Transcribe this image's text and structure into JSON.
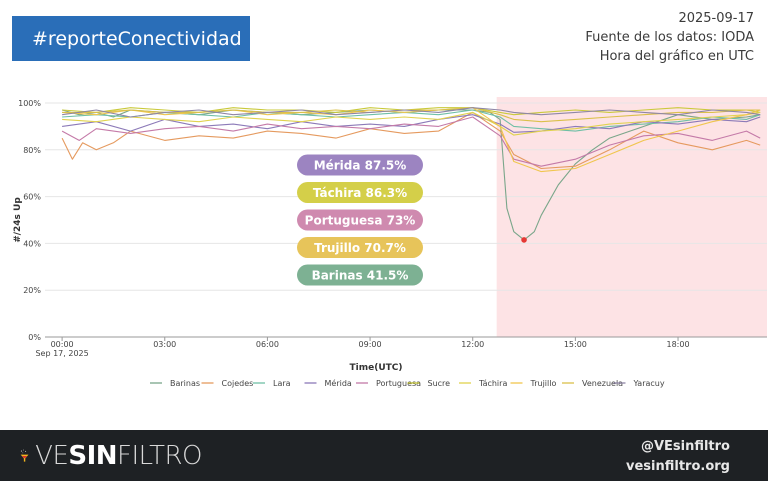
{
  "header": {
    "hashtag": "#reporteConectividad",
    "date": "2025-09-17",
    "source": "Fuente de los datos: IODA",
    "timezone_note": "Hora del gráfico en UTC"
  },
  "chart_data": {
    "type": "line",
    "xlabel": "Time(UTC)",
    "ylabel": "#/24s Up",
    "ylim": [
      0,
      100
    ],
    "y_ticks": [
      "0%",
      "20%",
      "40%",
      "60%",
      "80%",
      "100%"
    ],
    "x_ticks": [
      "00:00",
      "03:00",
      "06:00",
      "09:00",
      "12:00",
      "15:00",
      "18:00"
    ],
    "x_tick_hours": [
      0,
      3,
      6,
      9,
      12,
      15,
      18
    ],
    "x_start_label": "Sep 17, 2025",
    "xlim_hours": [
      -0.5,
      20.6
    ],
    "highlight_region_hours": [
      12.7,
      20.6
    ],
    "highlight_color": "#fde3e5",
    "marker": {
      "hour": 13.5,
      "value": 41.5,
      "color": "#e53935"
    },
    "labels": [
      {
        "text": "Mérida 87.5%",
        "color": "#9c84c1"
      },
      {
        "text": "Táchira 86.3%",
        "color": "#d4cf49"
      },
      {
        "text": "Portuguesa 73%",
        "color": "#cf8aaf"
      },
      {
        "text": "Trujillo 70.7%",
        "color": "#e7c45a"
      },
      {
        "text": "Barinas 41.5%",
        "color": "#7db193"
      }
    ],
    "series": [
      {
        "name": "Barinas",
        "color": "#7aa68a",
        "x": [
          0,
          0.5,
          1,
          1.5,
          2,
          3,
          4,
          5,
          6,
          7,
          8,
          9,
          10,
          11,
          12,
          12.5,
          12.8,
          13,
          13.2,
          13.5,
          13.8,
          14,
          14.5,
          15,
          15.5,
          16,
          17,
          18,
          19,
          20,
          20.4
        ],
        "values": [
          97,
          95,
          96,
          94,
          97,
          96,
          95,
          97,
          96,
          95,
          96,
          97,
          96,
          97,
          97,
          96,
          93,
          55,
          45,
          41.5,
          45,
          52,
          65,
          74,
          80,
          85,
          90,
          95,
          93,
          94,
          95
        ]
      },
      {
        "name": "Cojedes",
        "color": "#e59a5f",
        "x": [
          0,
          0.3,
          0.6,
          1,
          1.5,
          2,
          3,
          4,
          5,
          6,
          7,
          8,
          9,
          10,
          11,
          12,
          12.8,
          13.2,
          14,
          15,
          16,
          17,
          18,
          19,
          20,
          20.4
        ],
        "values": [
          85,
          76,
          83,
          80,
          83,
          88,
          84,
          86,
          85,
          88,
          87,
          85,
          89,
          87,
          88,
          96,
          88,
          78,
          72,
          73,
          80,
          88,
          83,
          80,
          84,
          82
        ]
      },
      {
        "name": "Lara",
        "color": "#6fbfa6",
        "x": [
          0,
          1,
          2,
          3,
          4,
          5,
          6,
          7,
          8,
          9,
          10,
          11,
          12,
          12.8,
          13.2,
          14,
          15,
          16,
          17,
          18,
          19,
          20,
          20.4
        ],
        "values": [
          94,
          95,
          94,
          96,
          95,
          94,
          96,
          95,
          94,
          95,
          96,
          95,
          97,
          94,
          90,
          89,
          88,
          90,
          91,
          92,
          94,
          93,
          95
        ]
      },
      {
        "name": "Mérida",
        "color": "#8c7ab8",
        "x": [
          0,
          1,
          2,
          3,
          4,
          5,
          6,
          7,
          8,
          9,
          10,
          11,
          12,
          12.8,
          13.2,
          14,
          15,
          16,
          17,
          18,
          19,
          20,
          20.4
        ],
        "values": [
          90,
          92,
          88,
          93,
          90,
          91,
          89,
          92,
          90,
          91,
          90,
          93,
          95,
          91,
          87.5,
          88,
          90,
          89,
          92,
          91,
          93,
          92,
          94
        ]
      },
      {
        "name": "Portuguesa",
        "color": "#c47aa8",
        "x": [
          0,
          0.5,
          1,
          2,
          3,
          4,
          5,
          6,
          7,
          8,
          9,
          10,
          11,
          12,
          12.8,
          13.2,
          14,
          15,
          16,
          17,
          18,
          19,
          20,
          20.4
        ],
        "values": [
          88,
          84,
          89,
          87,
          89,
          90,
          88,
          91,
          89,
          90,
          89,
          91,
          90,
          94,
          86,
          76,
          73,
          76,
          82,
          86,
          87,
          84,
          88,
          85
        ]
      },
      {
        "name": "Sucre",
        "color": "#c9c93a",
        "x": [
          0,
          1,
          2,
          3,
          4,
          5,
          6,
          7,
          8,
          9,
          10,
          11,
          12,
          12.8,
          13.2,
          14,
          15,
          16,
          17,
          18,
          19,
          20,
          20.4
        ],
        "values": [
          97,
          96,
          98,
          97,
          96,
          98,
          97,
          97,
          96,
          98,
          97,
          98,
          98,
          96,
          95,
          96,
          97,
          96,
          97,
          98,
          97,
          97,
          96
        ]
      },
      {
        "name": "Táchira",
        "color": "#e0d24e",
        "x": [
          0,
          1,
          2,
          3,
          4,
          5,
          6,
          7,
          8,
          9,
          10,
          11,
          12,
          12.8,
          13.2,
          14,
          15,
          16,
          17,
          18,
          19,
          20,
          20.4
        ],
        "values": [
          93,
          92,
          94,
          93,
          92,
          94,
          93,
          92,
          94,
          93,
          94,
          93,
          96,
          90,
          86.3,
          88,
          89,
          91,
          92,
          93,
          94,
          95,
          96
        ]
      },
      {
        "name": "Trujillo",
        "color": "#f0c64e",
        "x": [
          0,
          1,
          2,
          3,
          4,
          5,
          6,
          7,
          8,
          9,
          10,
          11,
          12,
          12.8,
          13.2,
          14,
          15,
          16,
          17,
          18,
          19,
          20,
          20.4
        ],
        "values": [
          96,
          95,
          97,
          95,
          96,
          97,
          95,
          96,
          95,
          97,
          96,
          97,
          98,
          90,
          75,
          70.7,
          72,
          78,
          84,
          88,
          92,
          95,
          97
        ]
      },
      {
        "name": "Venezuela",
        "color": "#dac04a",
        "x": [
          0,
          1,
          2,
          3,
          4,
          5,
          6,
          7,
          8,
          9,
          10,
          11,
          12,
          12.8,
          13.2,
          14,
          15,
          16,
          17,
          18,
          19,
          20,
          20.4
        ],
        "values": [
          96,
          96,
          97,
          96,
          96,
          97,
          96,
          96,
          97,
          96,
          97,
          97,
          98,
          95,
          93,
          92,
          93,
          94,
          95,
          96,
          96,
          97,
          97
        ]
      },
      {
        "name": "Yaracuy",
        "color": "#8f86a6",
        "x": [
          0,
          1,
          2,
          3,
          4,
          5,
          6,
          7,
          8,
          9,
          10,
          11,
          12,
          12.8,
          13.2,
          14,
          15,
          16,
          17,
          18,
          19,
          20,
          20.4
        ],
        "values": [
          95,
          97,
          94,
          96,
          97,
          95,
          96,
          97,
          95,
          96,
          97,
          96,
          98,
          97,
          96,
          95,
          96,
          97,
          96,
          95,
          97,
          96,
          95
        ]
      }
    ]
  },
  "footer": {
    "brand_ve": "VE",
    "brand_sin": "SIN",
    "brand_filtro": "FILTRO",
    "handle": "@VEsinfiltro",
    "site": "vesinfiltro.org"
  }
}
